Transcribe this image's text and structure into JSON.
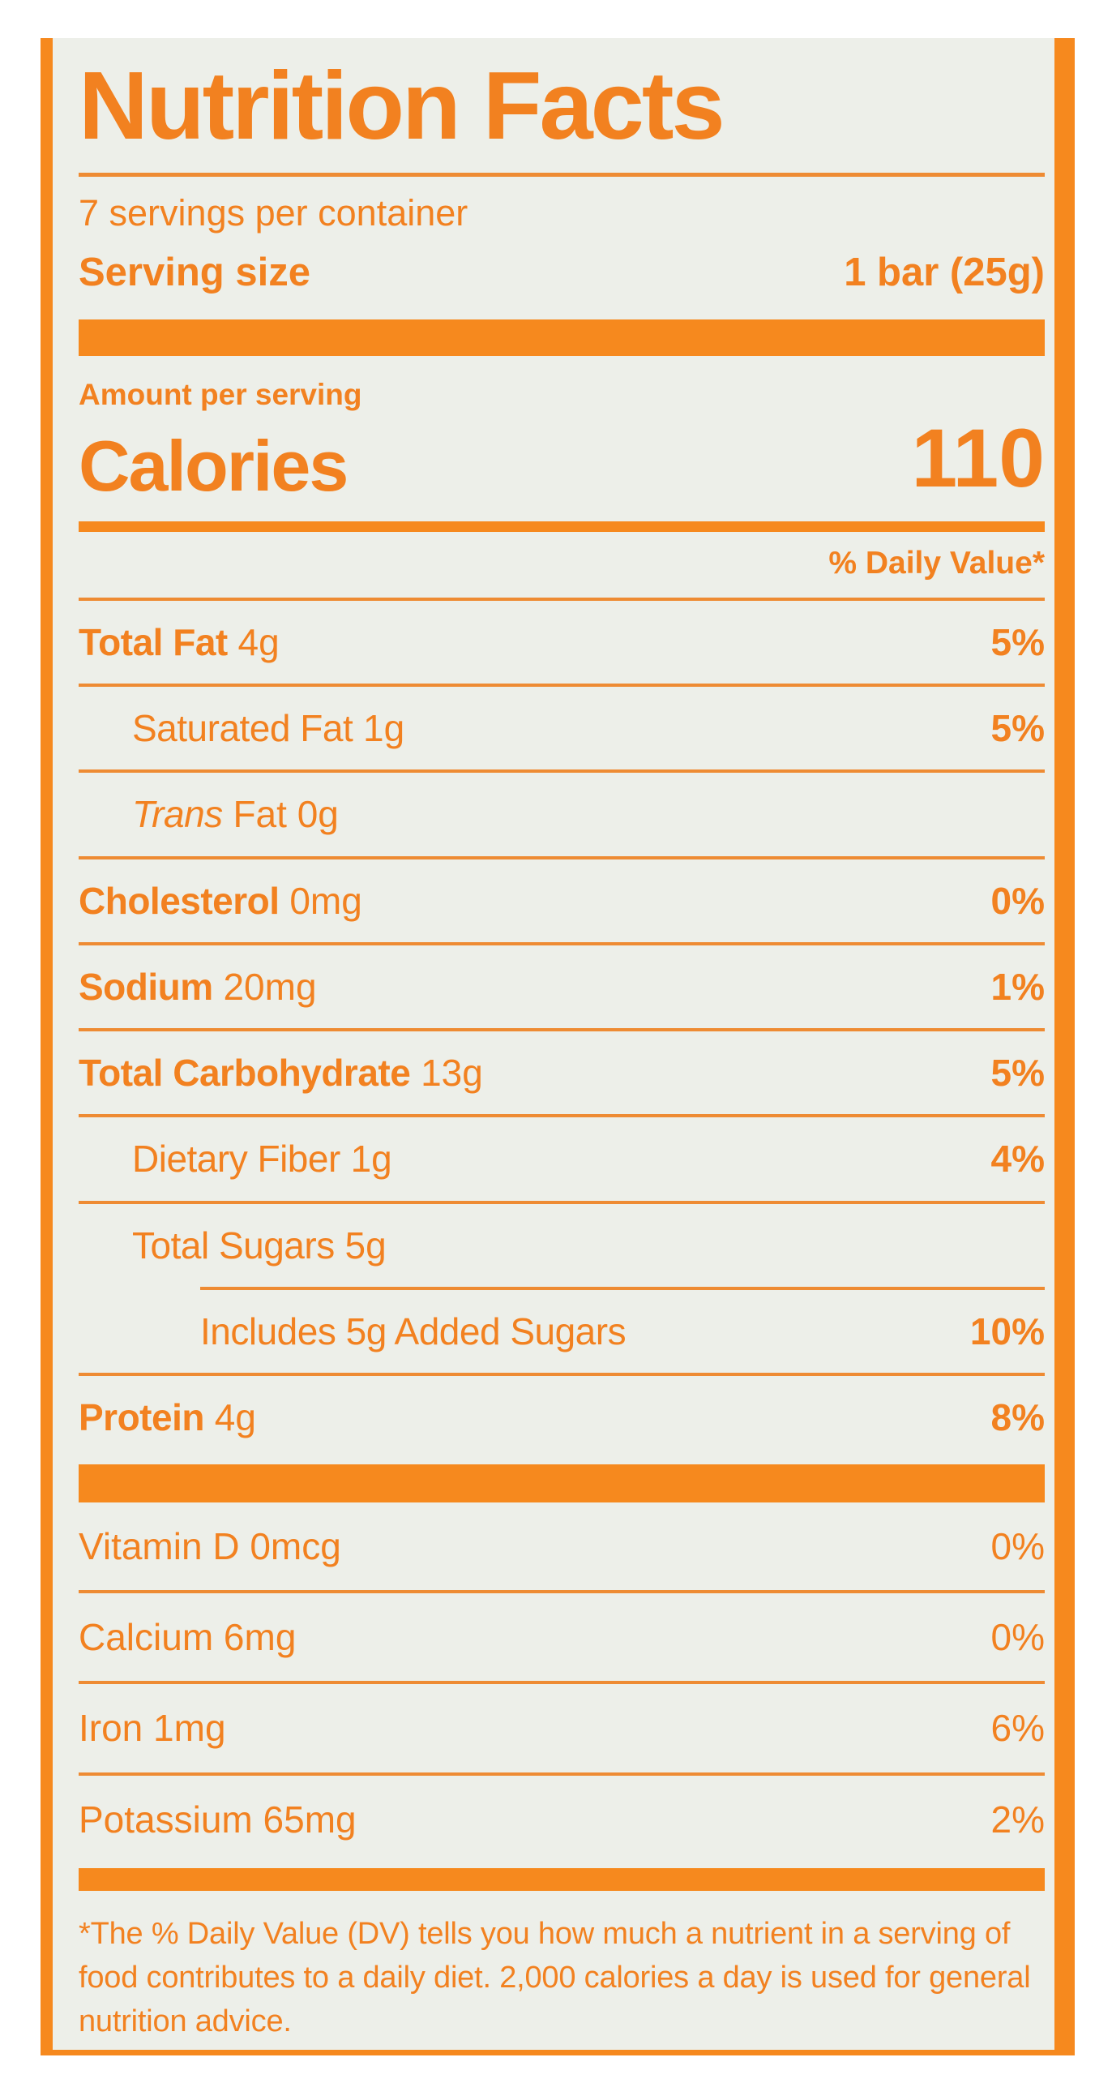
{
  "label": {
    "title": "Nutrition Facts",
    "servings_per_container": "7 servings per container",
    "serving_size_label": "Serving size",
    "serving_size_value": "1 bar (25g)",
    "amount_per_serving": "Amount per serving",
    "calories_label": "Calories",
    "calories_value": "110",
    "daily_value_header": "% Daily Value*",
    "nutrients": [
      {
        "name": "Total Fat",
        "amount": "4g",
        "dv": "5%"
      },
      {
        "name": "Saturated Fat",
        "amount": "1g",
        "dv": "5%"
      },
      {
        "name": "Trans",
        "amount": "Fat 0g",
        "dv": ""
      },
      {
        "name": "Cholesterol",
        "amount": "0mg",
        "dv": "0%"
      },
      {
        "name": "Sodium",
        "amount": "20mg",
        "dv": "1%"
      },
      {
        "name": "Total Carbohydrate",
        "amount": "13g",
        "dv": "5%"
      },
      {
        "name": "Dietary Fiber",
        "amount": "1g",
        "dv": "4%"
      },
      {
        "name": "Total Sugars",
        "amount": "5g",
        "dv": ""
      },
      {
        "name": "Includes 5g Added Sugars",
        "amount": "",
        "dv": "10%"
      },
      {
        "name": "Protein",
        "amount": "4g",
        "dv": "8%"
      }
    ],
    "vitamins": [
      {
        "name": "Vitamin D 0mcg",
        "dv": "0%"
      },
      {
        "name": "Calcium 6mg",
        "dv": "0%"
      },
      {
        "name": "Iron 1mg",
        "dv": "6%"
      },
      {
        "name": "Potassium 65mg",
        "dv": "2%"
      }
    ],
    "footnote": "*The % Daily Value (DV) tells you how much a nutrient in a serving of food contributes to a daily diet. 2,000 calories a day is used for general nutrition advice.",
    "colors": {
      "accent": "#f28120",
      "bar": "#f6891e",
      "panel_background": "#edefe9"
    }
  }
}
